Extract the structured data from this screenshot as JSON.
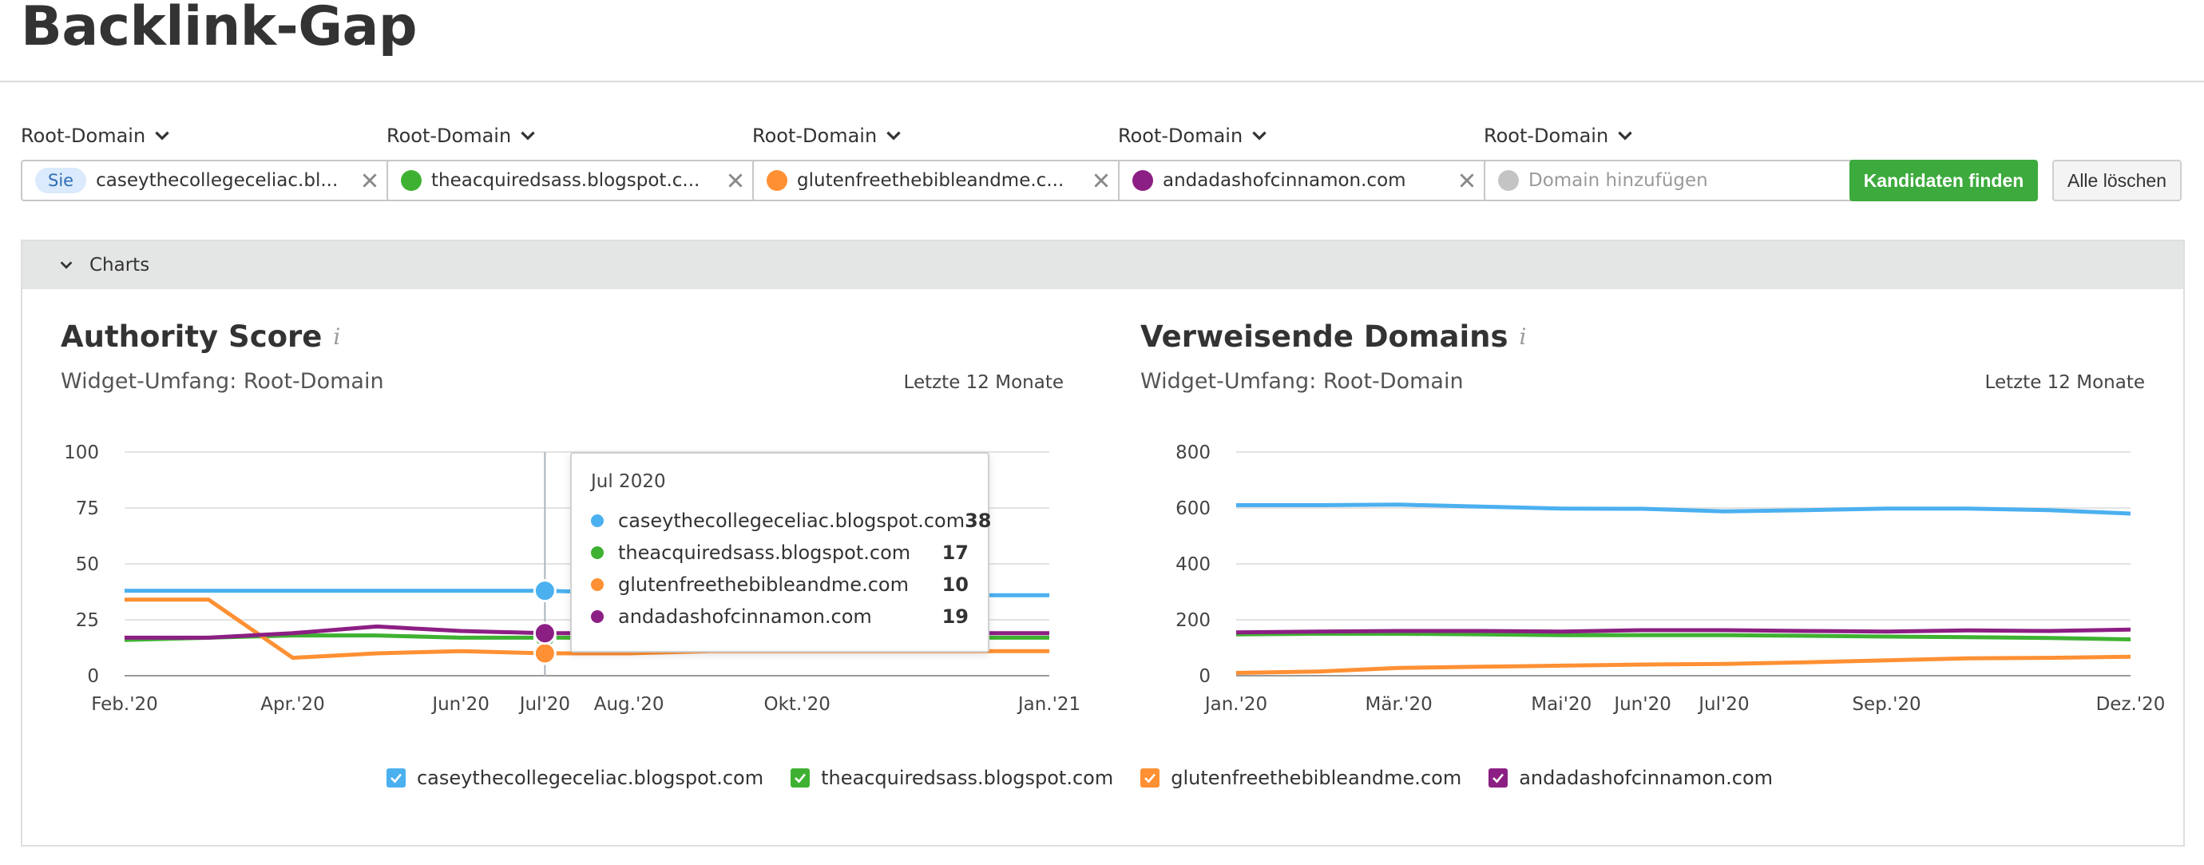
{
  "page": {
    "title": "Backlink-Gap"
  },
  "domains": [
    {
      "label": "Root-Domain",
      "value": "caseythecollegeceliac.bl...",
      "badge": "Sie",
      "color": "#4bb0ef"
    },
    {
      "label": "Root-Domain",
      "value": "theacquiredsass.blogspot.c...",
      "color": "#3fb132"
    },
    {
      "label": "Root-Domain",
      "value": "glutenfreethebibleandme.c...",
      "color": "#ff9033"
    },
    {
      "label": "Root-Domain",
      "value": "andadashofcinnamon.com",
      "color": "#8c1f84"
    },
    {
      "label": "Root-Domain",
      "placeholder": "Domain hinzufügen",
      "color": "#c4c4c4"
    }
  ],
  "actions": {
    "find": "Kandidaten finden",
    "clear": "Alle löschen"
  },
  "charts_section": {
    "label": "Charts"
  },
  "widgets": {
    "authority": {
      "title": "Authority Score",
      "info": "i",
      "scope": "Widget-Umfang: Root-Domain",
      "period": "Letzte 12 Monate"
    },
    "referring": {
      "title": "Verweisende Domains",
      "info": "i",
      "scope": "Widget-Umfang: Root-Domain",
      "period": "Letzte 12 Monate"
    }
  },
  "tooltip": {
    "date": "Jul 2020",
    "rows": [
      {
        "domain": "caseythecollegeceliac.blogspot.com",
        "value": "38",
        "color": "#4bb0ef"
      },
      {
        "domain": "theacquiredsass.blogspot.com",
        "value": "17",
        "color": "#3fb132"
      },
      {
        "domain": "glutenfreethebibleandme.com",
        "value": "10",
        "color": "#ff9033"
      },
      {
        "domain": "andadashofcinnamon.com",
        "value": "19",
        "color": "#8c1f84"
      }
    ]
  },
  "legend": [
    {
      "label": "caseythecollegeceliac.blogspot.com",
      "color": "#4bb0ef"
    },
    {
      "label": "theacquiredsass.blogspot.com",
      "color": "#3fb132"
    },
    {
      "label": "glutenfreethebibleandme.com",
      "color": "#ff9033"
    },
    {
      "label": "andadashofcinnamon.com",
      "color": "#8c1f84"
    }
  ],
  "chart_data": [
    {
      "type": "line",
      "title": "Authority Score",
      "x": [
        "2020-02",
        "2020-03",
        "2020-04",
        "2020-05",
        "2020-06",
        "2020-07",
        "2020-08",
        "2020-09",
        "2020-10",
        "2020-11",
        "2020-12",
        "2021-01"
      ],
      "x_tick_labels": [
        {
          "x": "2020-02",
          "label": "Feb.'20"
        },
        {
          "x": "2020-04",
          "label": "Apr.'20"
        },
        {
          "x": "2020-06",
          "label": "Jun'20"
        },
        {
          "x": "2020-07",
          "label": "Jul'20"
        },
        {
          "x": "2020-08",
          "label": "Aug.'20"
        },
        {
          "x": "2020-10",
          "label": "Okt.'20"
        },
        {
          "x": "2021-01",
          "label": "Jan.'21"
        }
      ],
      "y_ticks": [
        0,
        25,
        50,
        75,
        100
      ],
      "ylim": [
        0,
        100
      ],
      "grid": true,
      "highlight_x": "2020-07",
      "series": [
        {
          "name": "caseythecollegeceliac.blogspot.com",
          "color": "#4bb0ef",
          "values": [
            38,
            38,
            38,
            38,
            38,
            38,
            37,
            37,
            37,
            36,
            36,
            36
          ]
        },
        {
          "name": "theacquiredsass.blogspot.com",
          "color": "#3fb132",
          "values": [
            16,
            17,
            18,
            18,
            17,
            17,
            17,
            17,
            17,
            17,
            17,
            17
          ]
        },
        {
          "name": "glutenfreethebibleandme.com",
          "color": "#ff9033",
          "values": [
            34,
            34,
            8,
            10,
            11,
            10,
            10,
            11,
            11,
            11,
            11,
            11
          ]
        },
        {
          "name": "andadashofcinnamon.com",
          "color": "#8c1f84",
          "values": [
            17,
            17,
            19,
            22,
            20,
            19,
            19,
            19,
            19,
            19,
            19,
            19
          ]
        }
      ]
    },
    {
      "type": "line",
      "title": "Verweisende Domains",
      "x": [
        "2020-01",
        "2020-02",
        "2020-03",
        "2020-04",
        "2020-05",
        "2020-06",
        "2020-07",
        "2020-08",
        "2020-09",
        "2020-10",
        "2020-11",
        "2020-12"
      ],
      "x_tick_labels": [
        {
          "x": "2020-01",
          "label": "Jan.'20"
        },
        {
          "x": "2020-03",
          "label": "Mär.'20"
        },
        {
          "x": "2020-05",
          "label": "Mai'20"
        },
        {
          "x": "2020-06",
          "label": "Jun'20"
        },
        {
          "x": "2020-07",
          "label": "Jul'20"
        },
        {
          "x": "2020-09",
          "label": "Sep.'20"
        },
        {
          "x": "2020-12",
          "label": "Dez.'20"
        }
      ],
      "y_ticks": [
        0,
        200,
        400,
        600,
        800
      ],
      "ylim": [
        0,
        800
      ],
      "grid": true,
      "series": [
        {
          "name": "caseythecollegeceliac.blogspot.com",
          "color": "#4bb0ef",
          "values": [
            610,
            610,
            612,
            605,
            598,
            597,
            588,
            592,
            598,
            598,
            592,
            580
          ]
        },
        {
          "name": "theacquiredsass.blogspot.com",
          "color": "#3fb132",
          "values": [
            148,
            150,
            150,
            148,
            145,
            145,
            145,
            143,
            140,
            138,
            135,
            130
          ]
        },
        {
          "name": "glutenfreethebibleandme.com",
          "color": "#ff9033",
          "values": [
            10,
            15,
            28,
            32,
            36,
            40,
            42,
            48,
            55,
            62,
            64,
            68
          ]
        },
        {
          "name": "andadashofcinnamon.com",
          "color": "#8c1f84",
          "values": [
            155,
            158,
            160,
            160,
            158,
            163,
            163,
            160,
            158,
            162,
            160,
            165
          ]
        }
      ]
    }
  ]
}
